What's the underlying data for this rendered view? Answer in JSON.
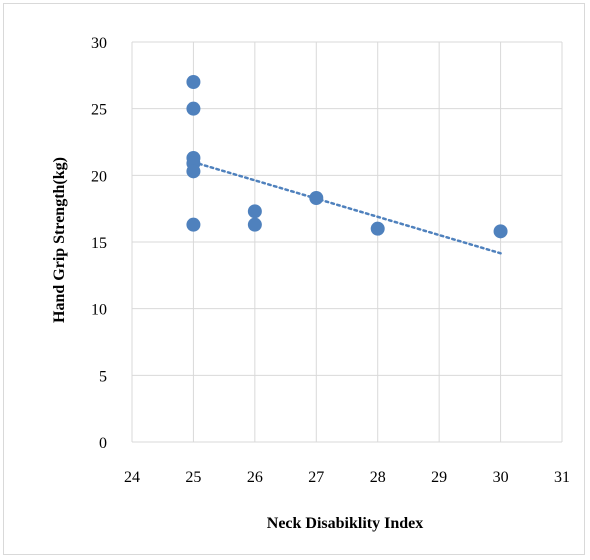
{
  "chart_data": {
    "type": "scatter",
    "title": "",
    "xlabel": "Neck Disabiklity Index",
    "ylabel": "Hand Grip Strength(kg)",
    "xlim": [
      24,
      31
    ],
    "ylim": [
      0,
      30
    ],
    "xticks": [
      24,
      25,
      26,
      27,
      28,
      29,
      30,
      31
    ],
    "yticks": [
      0,
      5,
      10,
      15,
      20,
      25,
      30
    ],
    "grid": true,
    "legend": "none",
    "series": [
      {
        "x": [
          25,
          25,
          25,
          25,
          25,
          25,
          26,
          26,
          27,
          28,
          30
        ],
        "y": [
          27.0,
          25.0,
          21.3,
          20.9,
          20.3,
          16.3,
          17.3,
          16.3,
          18.3,
          16.0,
          15.8
        ],
        "color": "#4f81bd"
      }
    ],
    "trendline": {
      "type": "linear",
      "x_range": [
        25,
        30
      ],
      "style": "dotted",
      "color": "#4f81bd"
    },
    "colors": {
      "grid": "#d9d9d9",
      "marker": "#4f81bd"
    }
  }
}
